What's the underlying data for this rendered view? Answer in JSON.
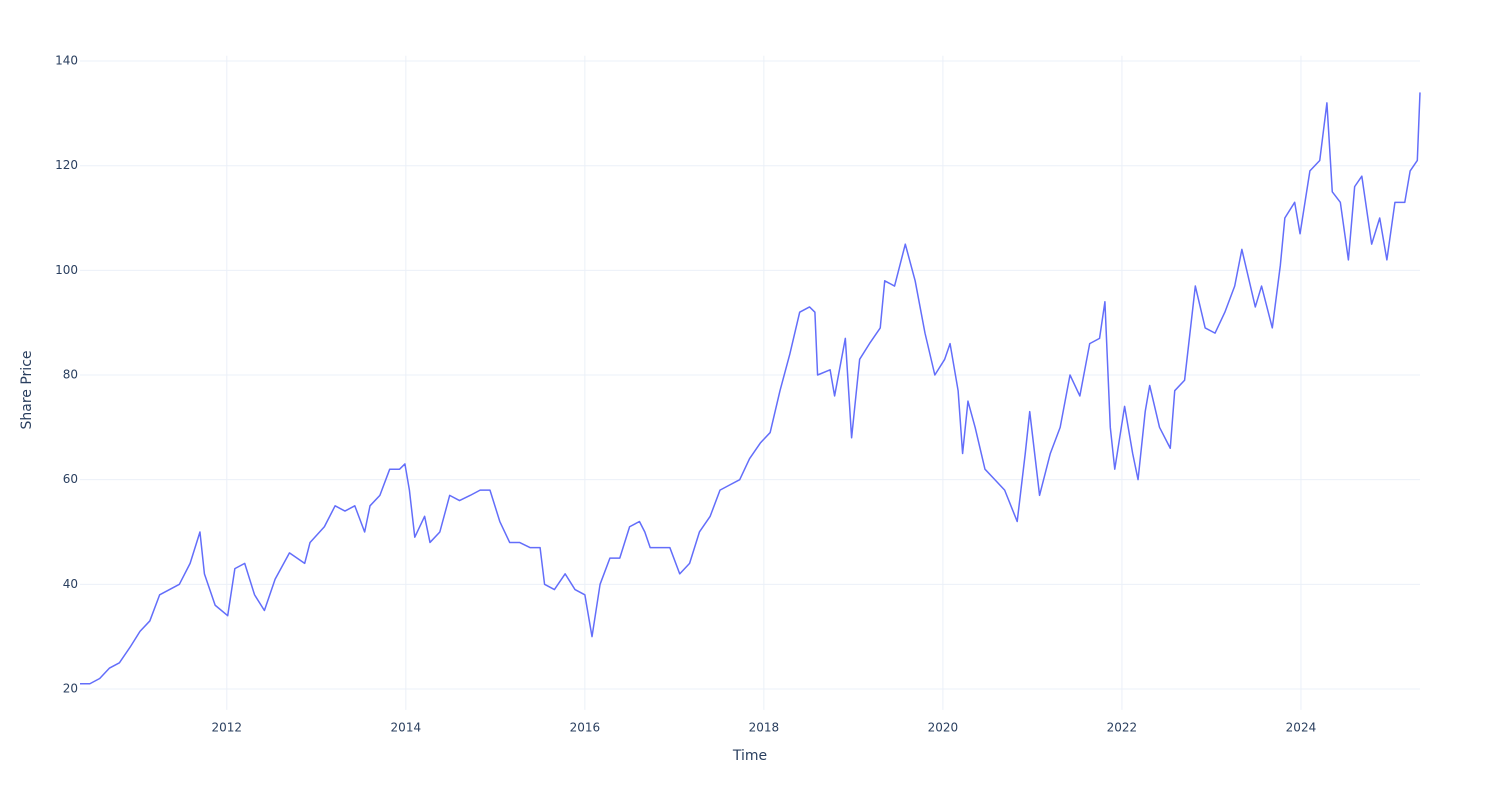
{
  "chart_data": {
    "type": "line",
    "x_label": "Time",
    "y_label": "Share Price",
    "x": [
      2010.36,
      2010.47,
      2010.58,
      2010.69,
      2010.8,
      2010.92,
      2011.03,
      2011.14,
      2011.25,
      2011.36,
      2011.47,
      2011.59,
      2011.7,
      2011.75,
      2011.87,
      2012.01,
      2012.09,
      2012.2,
      2012.31,
      2012.42,
      2012.54,
      2012.7,
      2012.87,
      2012.93,
      2013.09,
      2013.21,
      2013.32,
      2013.43,
      2013.54,
      2013.6,
      2013.71,
      2013.82,
      2013.93,
      2013.99,
      2014.04,
      2014.1,
      2014.21,
      2014.27,
      2014.38,
      2014.49,
      2014.6,
      2014.72,
      2014.83,
      2014.94,
      2015.05,
      2015.16,
      2015.27,
      2015.39,
      2015.5,
      2015.55,
      2015.66,
      2015.78,
      2015.89,
      2016.0,
      2016.08,
      2016.17,
      2016.28,
      2016.39,
      2016.5,
      2016.61,
      2016.67,
      2016.73,
      2016.84,
      2016.95,
      2017.06,
      2017.17,
      2017.28,
      2017.4,
      2017.51,
      2017.62,
      2017.73,
      2017.84,
      2017.96,
      2018.07,
      2018.18,
      2018.29,
      2018.4,
      2018.51,
      2018.57,
      2018.6,
      2018.74,
      2018.79,
      2018.91,
      2018.98,
      2019.07,
      2019.18,
      2019.3,
      2019.35,
      2019.46,
      2019.58,
      2019.69,
      2019.8,
      2019.91,
      2020.02,
      2020.08,
      2020.17,
      2020.22,
      2020.28,
      2020.36,
      2020.47,
      2020.58,
      2020.69,
      2020.83,
      2020.92,
      2020.97,
      2021.08,
      2021.2,
      2021.31,
      2021.42,
      2021.53,
      2021.64,
      2021.75,
      2021.81,
      2021.87,
      2021.92,
      2022.03,
      2022.12,
      2022.18,
      2022.26,
      2022.31,
      2022.42,
      2022.54,
      2022.59,
      2022.7,
      2022.82,
      2022.93,
      2023.04,
      2023.15,
      2023.26,
      2023.34,
      2023.49,
      2023.56,
      2023.68,
      2023.77,
      2023.82,
      2023.93,
      2023.99,
      2024.1,
      2024.21,
      2024.29,
      2024.35,
      2024.44,
      2024.53,
      2024.6,
      2024.68,
      2024.79,
      2024.88,
      2024.96,
      2025.05,
      2025.16,
      2025.22,
      2025.3,
      2025.33
    ],
    "values": [
      21,
      21,
      22,
      24,
      25,
      28,
      31,
      33,
      38,
      39,
      40,
      44,
      50,
      42,
      36,
      34,
      43,
      44,
      38,
      35,
      41,
      46,
      44,
      48,
      51,
      55,
      54,
      55,
      50,
      55,
      57,
      62,
      62,
      63,
      58,
      49,
      53,
      48,
      50,
      57,
      56,
      57,
      58,
      58,
      52,
      48,
      48,
      47,
      47,
      40,
      39,
      42,
      39,
      38,
      30,
      40,
      45,
      45,
      51,
      52,
      50,
      47,
      47,
      47,
      42,
      44,
      50,
      53,
      58,
      59,
      60,
      64,
      67,
      69,
      77,
      84,
      92,
      93,
      92,
      80,
      81,
      76,
      87,
      68,
      83,
      86,
      89,
      98,
      97,
      105,
      98,
      88,
      80,
      83,
      86,
      77,
      65,
      75,
      70,
      62,
      60,
      58,
      52,
      65,
      73,
      57,
      65,
      70,
      80,
      76,
      86,
      87,
      94,
      70,
      62,
      74,
      65,
      60,
      73,
      78,
      70,
      66,
      77,
      79,
      97,
      89,
      88,
      92,
      97,
      104,
      93,
      97,
      89,
      101,
      110,
      113,
      107,
      119,
      121,
      132,
      115,
      113,
      102,
      116,
      118,
      105,
      110,
      102,
      113,
      113,
      119,
      121,
      134
    ],
    "color": "#636efa",
    "xlim": [
      2010.36,
      2025.33
    ],
    "xticks": [
      2012,
      2014,
      2016,
      2018,
      2020,
      2022,
      2024
    ],
    "ylim": [
      16,
      141
    ],
    "yticks": [
      20,
      40,
      60,
      80,
      100,
      120,
      140
    ],
    "grid": true
  }
}
